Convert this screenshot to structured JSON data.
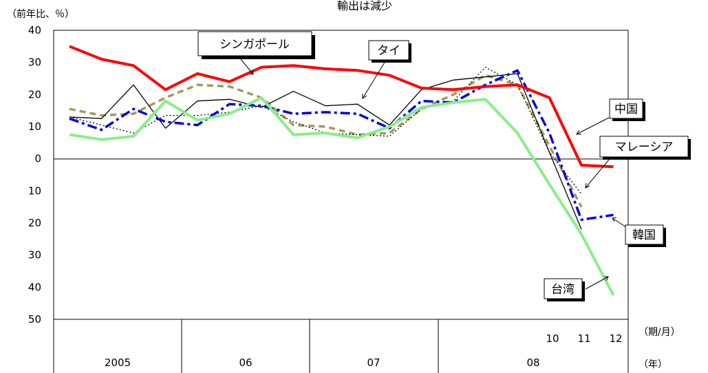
{
  "chart_data": {
    "type": "line",
    "title": "輸出は減少",
    "ylabel": "（前年比、％）",
    "ylim": [
      -50,
      40
    ],
    "yticks": [
      40,
      30,
      20,
      10,
      0,
      -10,
      -20,
      -30,
      -40,
      -50
    ],
    "ytick_labels": [
      "40",
      "30",
      "20",
      "10",
      "0",
      "10",
      "20",
      "30",
      "40",
      "50"
    ],
    "xlabel_period": "（期/月）",
    "xlabel_year": "（年）",
    "years": [
      "2005",
      "06",
      "07",
      "08"
    ],
    "month_labels": [
      "10",
      "11",
      "12"
    ],
    "x": [
      "2005Q1",
      "2005Q2",
      "2005Q3",
      "2005Q4",
      "2006Q1",
      "2006Q2",
      "2006Q3",
      "2006Q4",
      "2007Q1",
      "2007Q2",
      "2007Q3",
      "2007Q4",
      "2008Q1",
      "2008Q2",
      "2008Q3",
      "2008-10",
      "2008-11",
      "2008-12"
    ],
    "series": [
      {
        "name": "中国",
        "color": "#ff0000",
        "style": "solid-thick",
        "values": [
          35,
          31,
          29,
          21.5,
          26.5,
          24,
          28.5,
          29,
          28,
          27.5,
          26,
          22,
          21.5,
          22.5,
          23,
          19,
          -2,
          -2.5
        ]
      },
      {
        "name": "シンガポール",
        "color": "#a39a5a",
        "style": "dash-thick",
        "values": [
          15.5,
          13.5,
          14,
          19,
          23,
          22.5,
          19,
          10.5,
          10,
          7.5,
          8,
          15.5,
          20,
          26,
          23,
          4,
          -15,
          null
        ]
      },
      {
        "name": "タイ",
        "color": "#000000",
        "style": "solid-thin",
        "values": [
          13,
          12.5,
          23,
          9.5,
          18,
          18.5,
          16,
          21,
          16.5,
          17,
          10.5,
          21.5,
          24.5,
          25.5,
          26.5,
          2,
          -22,
          null
        ]
      },
      {
        "name": "マレーシア",
        "color": "#000000",
        "style": "dot",
        "values": [
          13,
          10.5,
          8,
          13.5,
          13.5,
          14.5,
          16.5,
          11.5,
          8,
          7.5,
          7,
          15.5,
          18,
          28.5,
          23,
          2,
          -11,
          null
        ]
      },
      {
        "name": "韓国",
        "color": "#0000e0",
        "style": "dashdot-thick",
        "values": [
          12.5,
          9,
          15.5,
          11.5,
          10.5,
          17,
          16.5,
          14,
          14.5,
          14,
          9.5,
          18,
          17.5,
          23,
          27.5,
          8,
          -19,
          -17.5
        ]
      },
      {
        "name": "台湾",
        "color": "#88ee88",
        "style": "solid-thick",
        "values": [
          7.5,
          6,
          7,
          18,
          12,
          14,
          19,
          7.5,
          8,
          6.5,
          10,
          16,
          17.5,
          18.5,
          8,
          -8,
          -23.5,
          -42.5
        ]
      }
    ]
  },
  "labels": {
    "singapore": "シンガポール",
    "thai": "タイ",
    "china": "中国",
    "malaysia": "マレーシア",
    "korea": "韓国",
    "taiwan": "台湾"
  }
}
